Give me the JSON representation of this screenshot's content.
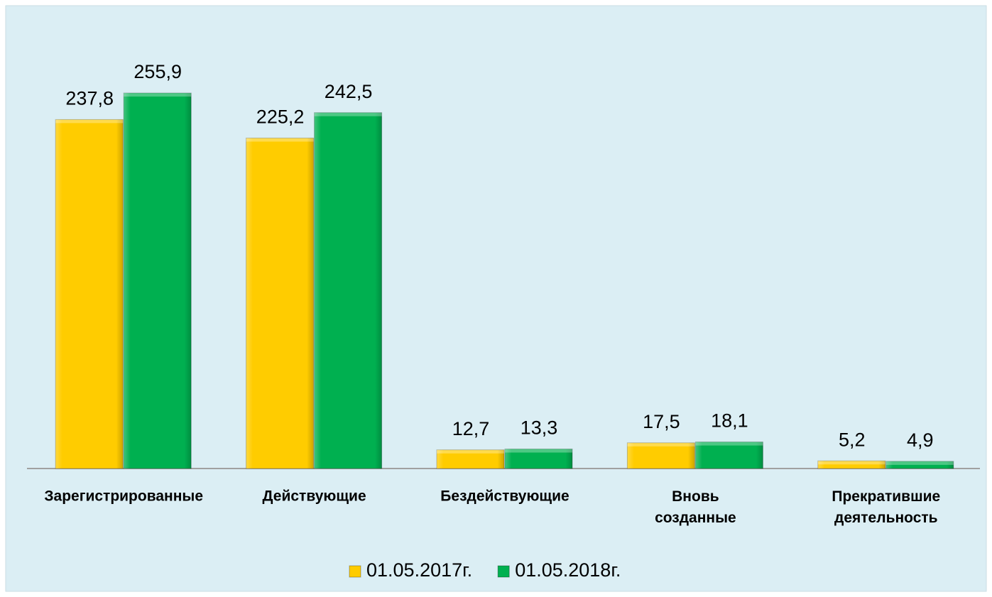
{
  "chart_data": {
    "type": "bar",
    "categories": [
      "Зарегистрированные",
      "Действующие",
      "Бездействующие",
      "Вновь\nсозданные",
      "Прекратившие\nдеятельность"
    ],
    "series": [
      {
        "name": "01.05.2017г.",
        "color": "#ffcc00",
        "values": [
          237.8,
          225.2,
          12.7,
          17.5,
          5.2
        ],
        "value_labels": [
          "237,8",
          "225,2",
          "12,7",
          "17,5",
          "5,2"
        ]
      },
      {
        "name": "01.05.2018г.",
        "color": "#00b050",
        "values": [
          255.9,
          242.5,
          13.3,
          18.1,
          4.9
        ],
        "value_labels": [
          "255,9",
          "242,5",
          "13,3",
          "18,1",
          "4,9"
        ]
      }
    ],
    "legend": "bottom"
  }
}
